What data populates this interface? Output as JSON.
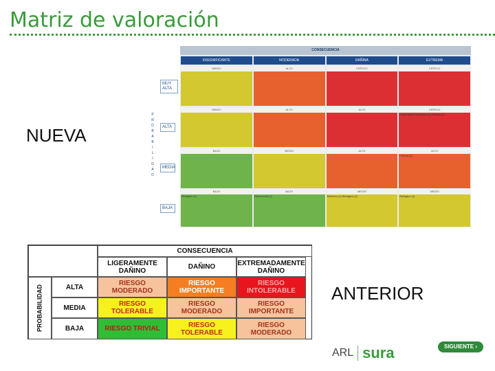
{
  "title": "Matriz de valoración",
  "labels": {
    "nueva": "NUEVA",
    "anterior": "ANTERIOR"
  },
  "new_matrix": {
    "header": "CONSECUENCIA",
    "columns": [
      "INSIGNIFICANTE",
      "MODERADA",
      "DAÑINA",
      "EXTREMA"
    ],
    "rows": [
      "MUY ALTA",
      "ALTA",
      "MEDIA",
      "BAJA"
    ],
    "vertical_label": [
      "P",
      "R",
      "O",
      "B",
      "A",
      "B",
      "I",
      "L",
      "I",
      "D",
      "A",
      "D"
    ],
    "cells": [
      [
        {
          "label": "MEDIO",
          "color": "yellow",
          "note": ""
        },
        {
          "label": "ALTO",
          "color": "orange",
          "note": ""
        },
        {
          "label": "CRÍTICO",
          "color": "red",
          "note": ""
        },
        {
          "label": "CRÍTICO",
          "color": "red",
          "note": ""
        }
      ],
      [
        {
          "label": "MEDIO",
          "color": "yellow",
          "note": ""
        },
        {
          "label": "ALTO",
          "color": "orange",
          "note": ""
        },
        {
          "label": "ALTO",
          "color": "red",
          "note": ""
        },
        {
          "label": "CRÍTICO",
          "color": "red",
          "note": "Fenómenos Naturales (1) Público (1)"
        }
      ],
      [
        {
          "label": "BAJO",
          "color": "green",
          "note": ""
        },
        {
          "label": "MEDIO",
          "color": "yellow",
          "note": ""
        },
        {
          "label": "ALTO",
          "color": "orange",
          "note": ""
        },
        {
          "label": "ALTO",
          "color": "orange",
          "note": "Físicos (1)"
        }
      ],
      [
        {
          "label": "BAJO",
          "color": "green",
          "note": "Biológico (1)"
        },
        {
          "label": "BAJO",
          "color": "green",
          "note": "Psicosocial (1)"
        },
        {
          "label": "MEDIO",
          "color": "yellow",
          "note": "Eléctrico (1) Biológico (1)"
        },
        {
          "label": "MEDIO",
          "color": "yellow",
          "note": "Biológico (1)"
        }
      ]
    ]
  },
  "old_matrix": {
    "header": "CONSECUENCIA",
    "prob_label": "PROBABILIDAD",
    "columns": [
      "LIGERAMENTE DAÑINO",
      "DAÑINO",
      "EXTREMADAMENTE DAÑINO"
    ],
    "rows": [
      {
        "name": "ALTA",
        "cells": [
          {
            "text": "RIESGO MODERADO",
            "cls": "lt-orange"
          },
          {
            "text": "RIESGO IMPORTANTE",
            "cls": "o-orange"
          },
          {
            "text": "RIESGO INTOLERABLE",
            "cls": "o-red"
          }
        ]
      },
      {
        "name": "MEDIA",
        "cells": [
          {
            "text": "RIESGO TOLERABLE",
            "cls": "o-yellow"
          },
          {
            "text": "RIESGO MODERADO",
            "cls": "lt-orange"
          },
          {
            "text": "RIESGO IMPORTANTE",
            "cls": "lt-orange"
          }
        ]
      },
      {
        "name": "BAJA",
        "cells": [
          {
            "text": "RIESGO TRIVIAL",
            "cls": "o-green"
          },
          {
            "text": "RIESGO TOLERABLE",
            "cls": "o-yellow"
          },
          {
            "text": "RIESGO MODERADO",
            "cls": "lt-orange"
          }
        ]
      }
    ]
  },
  "footer": {
    "siguiente": "SIGUIENTE",
    "logo_arl": "ARL",
    "logo_sura": "sura"
  }
}
